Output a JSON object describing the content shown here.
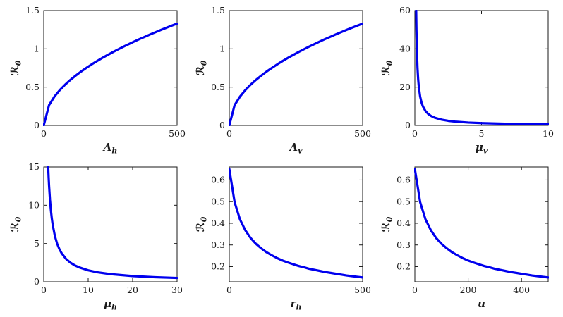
{
  "style": {
    "curve_color": "#0000EE",
    "axis_color": "#1a1a1a",
    "background": "#ffffff"
  },
  "chart_data": [
    {
      "type": "line",
      "title": "",
      "xlabel": {
        "base": "Λ",
        "sub": "h"
      },
      "ylabel": {
        "base": "ℛ",
        "sub": "0"
      },
      "xlim": [
        0,
        500
      ],
      "ylim": [
        0,
        1.5
      ],
      "xticks": [
        0,
        500
      ],
      "yticks": [
        0,
        0.5,
        1,
        1.5
      ],
      "grid": false,
      "legend": null,
      "x": [
        0,
        20,
        40,
        60,
        80,
        100,
        120,
        140,
        160,
        180,
        200,
        220,
        240,
        260,
        280,
        300,
        320,
        340,
        360,
        380,
        400,
        420,
        440,
        460,
        480,
        500
      ],
      "y": [
        0,
        0.266,
        0.376,
        0.461,
        0.532,
        0.595,
        0.651,
        0.704,
        0.752,
        0.798,
        0.841,
        0.882,
        0.921,
        0.959,
        0.995,
        1.03,
        1.064,
        1.097,
        1.129,
        1.159,
        1.19,
        1.219,
        1.248,
        1.276,
        1.303,
        1.33
      ]
    },
    {
      "type": "line",
      "title": "",
      "xlabel": {
        "base": "Λ",
        "sub": "v"
      },
      "ylabel": {
        "base": "ℛ",
        "sub": "0"
      },
      "xlim": [
        0,
        500
      ],
      "ylim": [
        0,
        1.5
      ],
      "xticks": [
        0,
        500
      ],
      "yticks": [
        0,
        0.5,
        1,
        1.5
      ],
      "grid": false,
      "legend": null,
      "x": [
        0,
        20,
        40,
        60,
        80,
        100,
        120,
        140,
        160,
        180,
        200,
        220,
        240,
        260,
        280,
        300,
        320,
        340,
        360,
        380,
        400,
        420,
        440,
        460,
        480,
        500
      ],
      "y": [
        0,
        0.266,
        0.376,
        0.461,
        0.532,
        0.595,
        0.651,
        0.704,
        0.752,
        0.798,
        0.841,
        0.882,
        0.921,
        0.959,
        0.995,
        1.03,
        1.064,
        1.097,
        1.129,
        1.159,
        1.19,
        1.219,
        1.248,
        1.276,
        1.303,
        1.33
      ]
    },
    {
      "type": "line",
      "title": "",
      "xlabel": {
        "base": "μ",
        "sub": "v"
      },
      "ylabel": {
        "base": "ℛ",
        "sub": "0"
      },
      "xlim": [
        0,
        10
      ],
      "ylim": [
        0,
        60
      ],
      "xticks": [
        0,
        5,
        10
      ],
      "yticks": [
        0,
        20,
        40,
        60
      ],
      "grid": false,
      "legend": null,
      "x": [
        0.1,
        0.12,
        0.15,
        0.2,
        0.25,
        0.3,
        0.4,
        0.5,
        0.6,
        0.8,
        1,
        1.2,
        1.5,
        2,
        2.5,
        3,
        4,
        5,
        6,
        7,
        8,
        9,
        10
      ],
      "y": [
        60,
        50,
        40,
        30,
        24,
        20,
        15,
        12,
        10,
        7.5,
        6,
        5,
        4,
        3,
        2.4,
        2,
        1.5,
        1.2,
        1,
        0.857,
        0.75,
        0.667,
        0.6
      ]
    },
    {
      "type": "line",
      "title": "",
      "xlabel": {
        "base": "μ",
        "sub": "h"
      },
      "ylabel": {
        "base": "ℛ",
        "sub": "0"
      },
      "xlim": [
        0,
        30
      ],
      "ylim": [
        0,
        15
      ],
      "xticks": [
        0,
        10,
        20,
        30
      ],
      "yticks": [
        0,
        5,
        10,
        15
      ],
      "grid": false,
      "legend": null,
      "x": [
        1,
        1.1,
        1.2,
        1.4,
        1.6,
        1.8,
        2,
        2.5,
        3,
        3.5,
        4,
        5,
        6,
        7,
        8,
        10,
        12,
        15,
        20,
        25,
        30
      ],
      "y": [
        15,
        13.64,
        12.5,
        10.71,
        9.38,
        8.33,
        7.5,
        6,
        5,
        4.29,
        3.75,
        3,
        2.5,
        2.14,
        1.88,
        1.5,
        1.25,
        1,
        0.75,
        0.6,
        0.5
      ]
    },
    {
      "type": "line",
      "title": "",
      "xlabel": {
        "base": "r",
        "sub": "h"
      },
      "ylabel": {
        "base": "ℛ",
        "sub": "0"
      },
      "xlim": [
        0,
        500
      ],
      "ylim": [
        0.13,
        0.66
      ],
      "xticks": [
        0,
        500
      ],
      "yticks": [
        0.2,
        0.3,
        0.4,
        0.5,
        0.6
      ],
      "grid": false,
      "legend": null,
      "x": [
        0,
        20,
        40,
        60,
        80,
        100,
        120,
        140,
        160,
        180,
        200,
        220,
        240,
        260,
        280,
        300,
        320,
        340,
        360,
        380,
        400,
        420,
        440,
        460,
        480,
        500
      ],
      "y": [
        0.651,
        0.497,
        0.418,
        0.368,
        0.332,
        0.305,
        0.284,
        0.266,
        0.252,
        0.239,
        0.228,
        0.219,
        0.211,
        0.203,
        0.197,
        0.19,
        0.185,
        0.18,
        0.175,
        0.171,
        0.167,
        0.163,
        0.159,
        0.156,
        0.153,
        0.15
      ]
    },
    {
      "type": "line",
      "title": "",
      "xlabel": {
        "base": "u",
        "sub": ""
      },
      "ylabel": {
        "base": "ℛ",
        "sub": "0"
      },
      "xlim": [
        0,
        500
      ],
      "ylim": [
        0.13,
        0.66
      ],
      "xticks": [
        0,
        200,
        400
      ],
      "yticks": [
        0.2,
        0.3,
        0.4,
        0.5,
        0.6
      ],
      "grid": false,
      "legend": null,
      "x": [
        0,
        20,
        40,
        60,
        80,
        100,
        120,
        140,
        160,
        180,
        200,
        220,
        240,
        260,
        280,
        300,
        320,
        340,
        360,
        380,
        400,
        420,
        440,
        460,
        480,
        500
      ],
      "y": [
        0.651,
        0.497,
        0.418,
        0.368,
        0.332,
        0.305,
        0.284,
        0.266,
        0.252,
        0.239,
        0.228,
        0.219,
        0.211,
        0.203,
        0.197,
        0.19,
        0.185,
        0.18,
        0.175,
        0.171,
        0.167,
        0.163,
        0.159,
        0.156,
        0.153,
        0.15
      ]
    }
  ]
}
